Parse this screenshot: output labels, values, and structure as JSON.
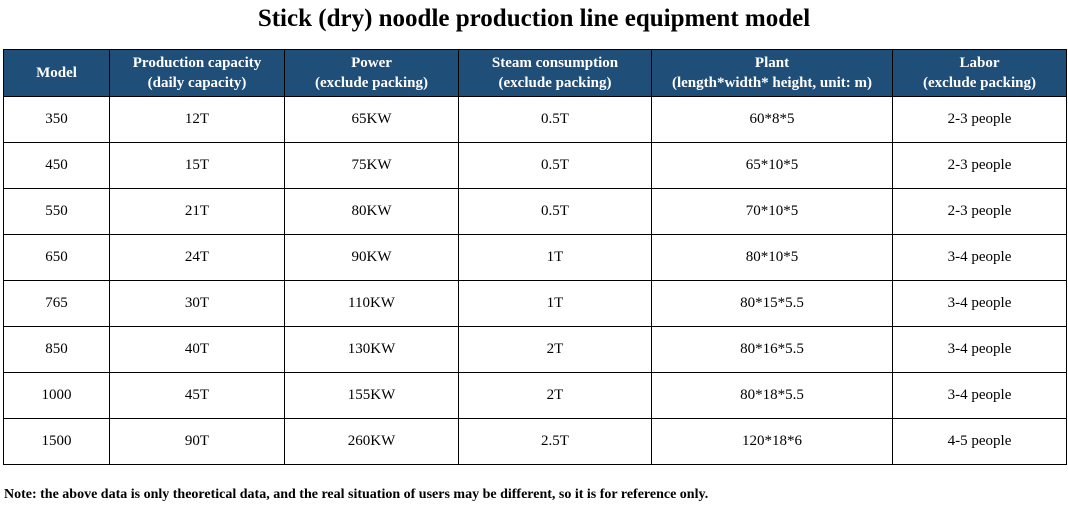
{
  "title": "Stick (dry) noodle production line equipment model",
  "table": {
    "headers": [
      {
        "line1": "Model",
        "line2": ""
      },
      {
        "line1": "Production capacity",
        "line2": "(daily capacity)"
      },
      {
        "line1": "Power",
        "line2": "(exclude packing)"
      },
      {
        "line1": "Steam consumption",
        "line2": "(exclude packing)"
      },
      {
        "line1": "Plant",
        "line2": "(length*width* height, unit: m)"
      },
      {
        "line1": "Labor",
        "line2": "(exclude packing)"
      }
    ],
    "rows": [
      [
        "350",
        "12T",
        "65KW",
        "0.5T",
        "60*8*5",
        "2-3 people"
      ],
      [
        "450",
        "15T",
        "75KW",
        "0.5T",
        "65*10*5",
        "2-3 people"
      ],
      [
        "550",
        "21T",
        "80KW",
        "0.5T",
        "70*10*5",
        "2-3 people"
      ],
      [
        "650",
        "24T",
        "90KW",
        "1T",
        "80*10*5",
        "3-4 people"
      ],
      [
        "765",
        "30T",
        "110KW",
        "1T",
        "80*15*5.5",
        "3-4 people"
      ],
      [
        "850",
        "40T",
        "130KW",
        "2T",
        "80*16*5.5",
        "3-4 people"
      ],
      [
        "1000",
        "45T",
        "155KW",
        "2T",
        "80*18*5.5",
        "3-4 people"
      ],
      [
        "1500",
        "90T",
        "260KW",
        "2.5T",
        "120*18*6",
        "4-5 people"
      ]
    ]
  },
  "note": "Note: the above data is only theoretical data, and the real situation of users may be different, so it is for reference only.",
  "colors": {
    "header_background": "#1f4e79",
    "header_text": "#ffffff",
    "border": "#000000"
  }
}
